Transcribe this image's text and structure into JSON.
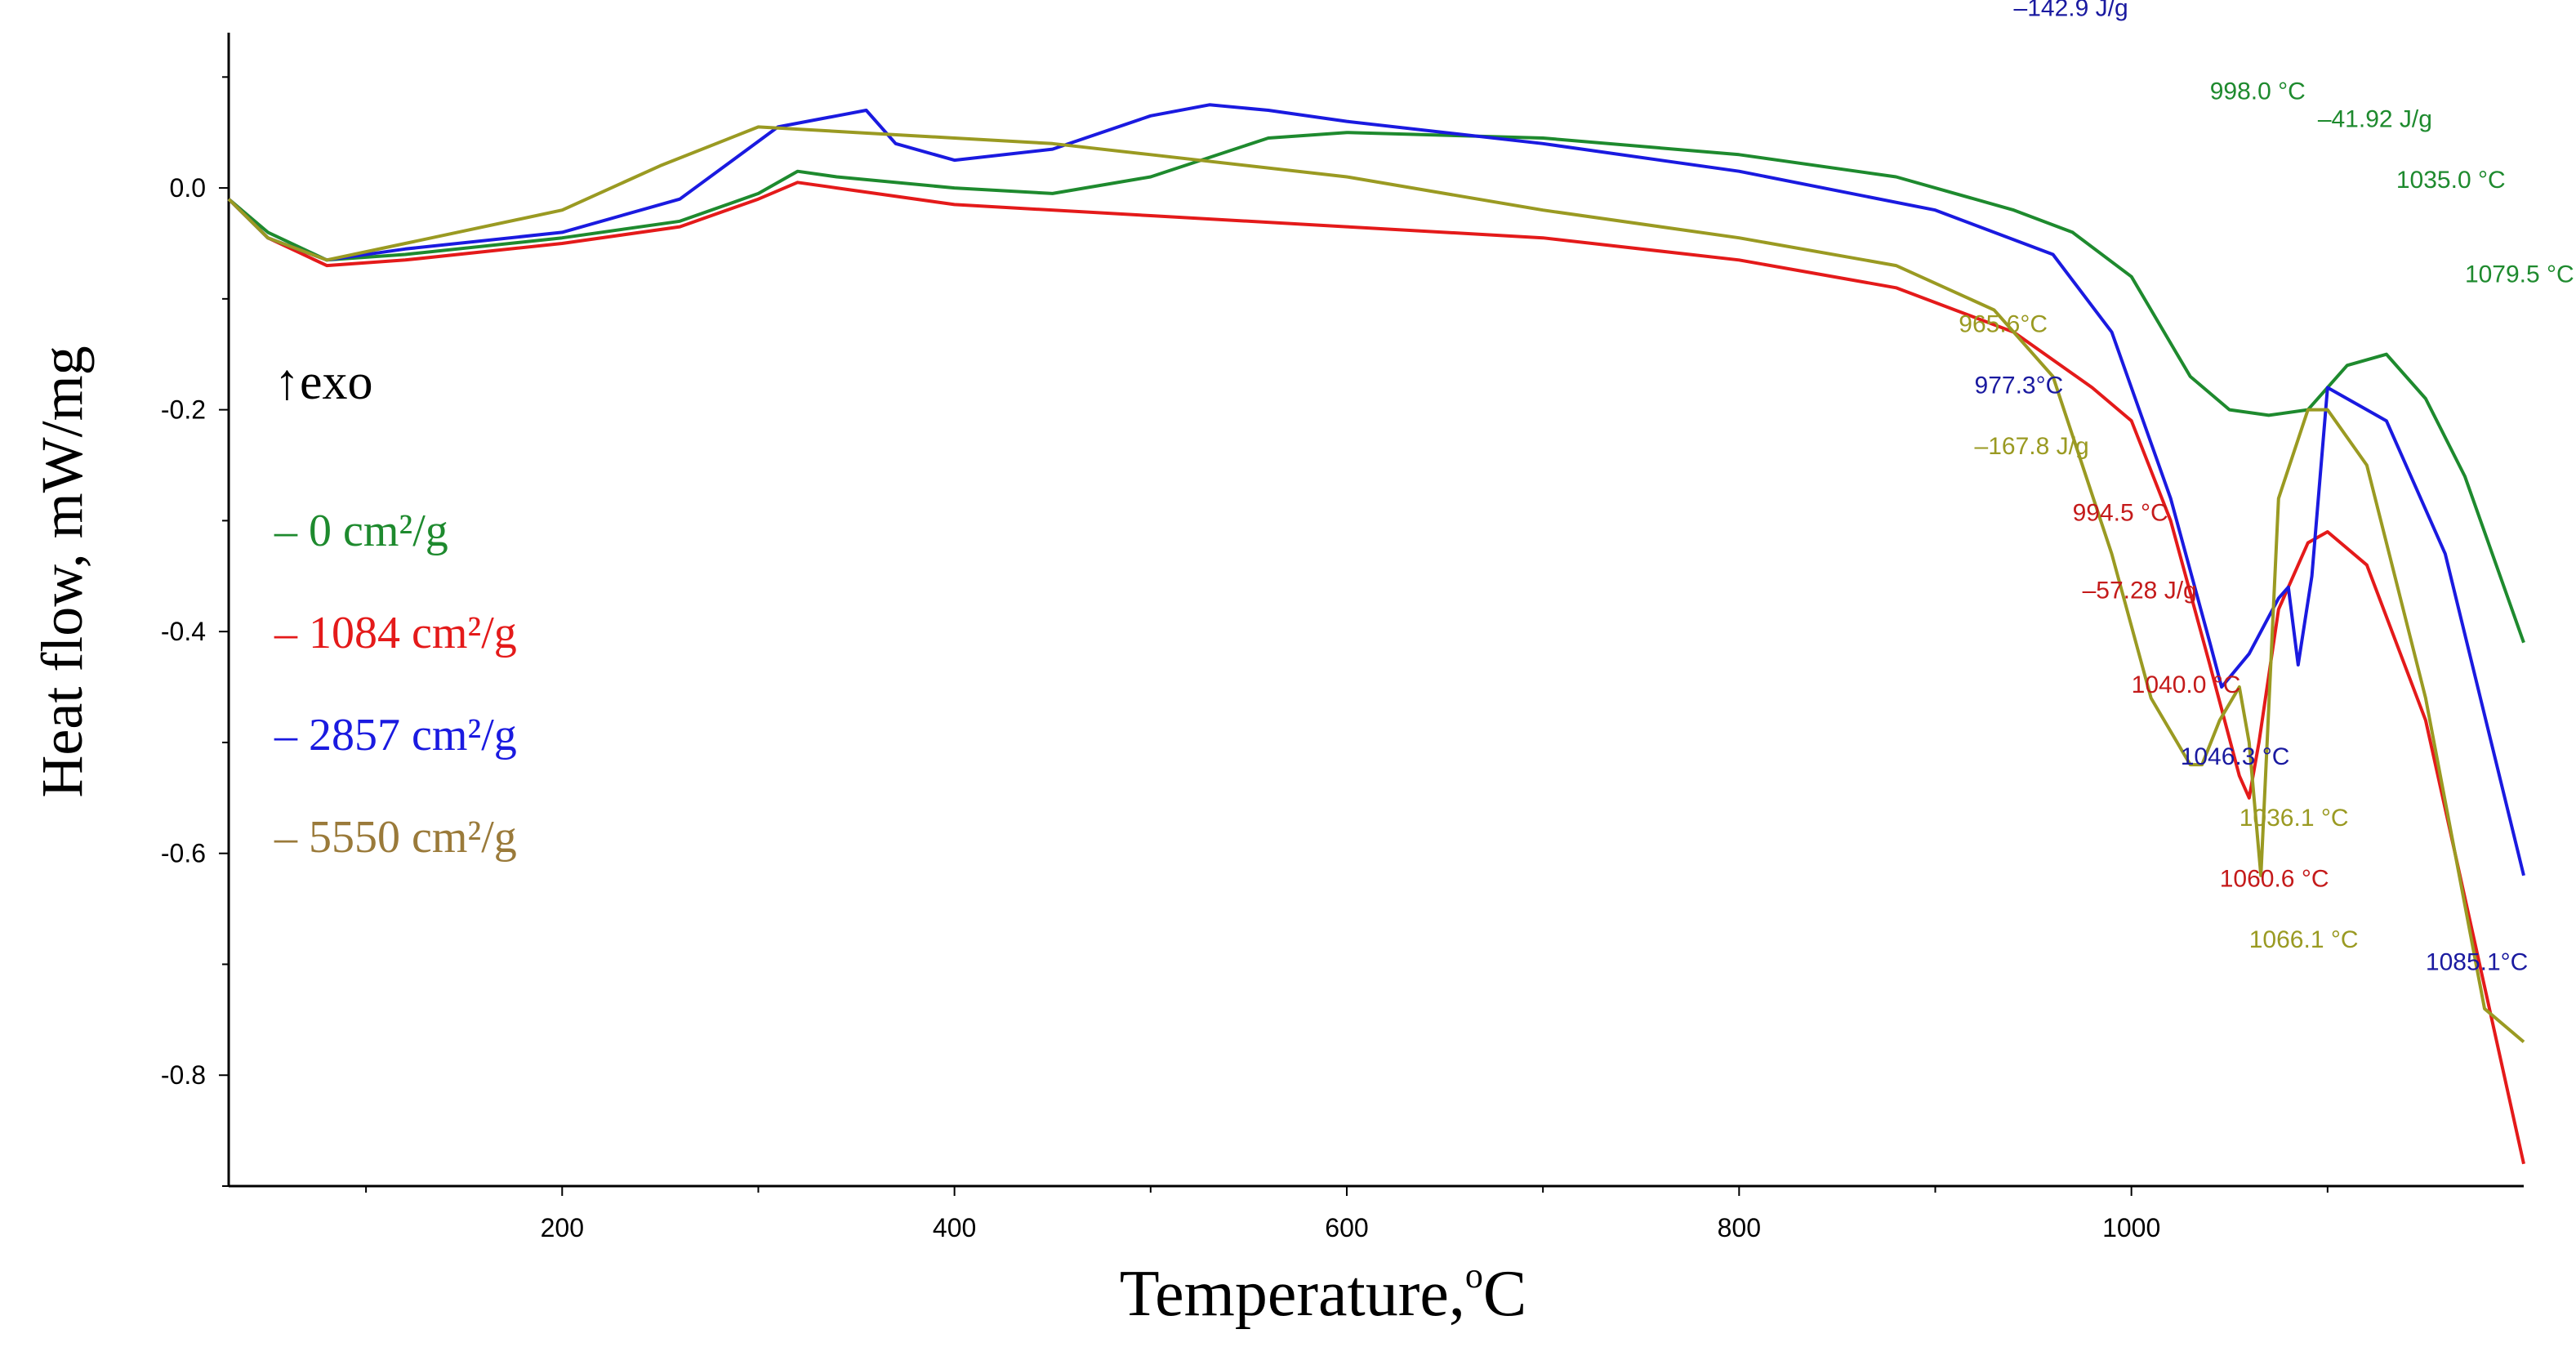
{
  "chart_data": {
    "type": "line",
    "xlabel": "Temperature,",
    "xlabel_unit": "o",
    "xlabel_suffix": "C",
    "ylabel": "Heat flow, mW/mg",
    "xlim": [
      30,
      1200
    ],
    "ylim": [
      -0.9,
      0.14
    ],
    "x_ticks": [
      200,
      400,
      600,
      800,
      1000
    ],
    "x_tick_labels": [
      "200",
      "400",
      "600",
      "800",
      "1000"
    ],
    "y_ticks": [
      0.0,
      -0.2,
      -0.4,
      -0.6,
      -0.8
    ],
    "y_tick_labels": [
      "0.0",
      "-0.2",
      "-0.4",
      "-0.6",
      "-0.8"
    ],
    "exo_label": "↑exo",
    "legend": [
      {
        "label": "– 0 cm²/g",
        "color": "#1e8a2e"
      },
      {
        "label": "– 1084 cm²/g",
        "color": "#e41a1a"
      },
      {
        "label": "– 2857 cm²/g",
        "color": "#1a1ae0"
      },
      {
        "label": "– 5550 cm²/g",
        "color": "#9a7a3a"
      }
    ],
    "series": [
      {
        "name": "0 cm²/g",
        "color": "#1e8a2e",
        "x": [
          30,
          50,
          80,
          120,
          200,
          260,
          300,
          320,
          340,
          400,
          450,
          500,
          560,
          600,
          700,
          800,
          880,
          940,
          970,
          1000,
          1010,
          1030,
          1050,
          1070,
          1090,
          1110,
          1130,
          1150,
          1170,
          1200
        ],
        "y": [
          -0.01,
          -0.04,
          -0.065,
          -0.06,
          -0.045,
          -0.03,
          -0.005,
          0.015,
          0.01,
          0.0,
          -0.005,
          0.01,
          0.045,
          0.05,
          0.045,
          0.03,
          0.01,
          -0.02,
          -0.04,
          -0.08,
          -0.11,
          -0.17,
          -0.2,
          -0.205,
          -0.2,
          -0.16,
          -0.15,
          -0.19,
          -0.26,
          -0.41
        ]
      },
      {
        "name": "1084 cm²/g",
        "color": "#e41a1a",
        "x": [
          30,
          50,
          80,
          120,
          200,
          260,
          300,
          320,
          340,
          400,
          500,
          600,
          700,
          800,
          880,
          940,
          980,
          1000,
          1020,
          1040,
          1055,
          1060,
          1065,
          1075,
          1090,
          1100,
          1120,
          1150,
          1180,
          1200
        ],
        "y": [
          -0.01,
          -0.045,
          -0.07,
          -0.065,
          -0.05,
          -0.035,
          -0.01,
          0.005,
          0.0,
          -0.015,
          -0.025,
          -0.035,
          -0.045,
          -0.065,
          -0.09,
          -0.13,
          -0.18,
          -0.21,
          -0.3,
          -0.43,
          -0.53,
          -0.55,
          -0.5,
          -0.38,
          -0.32,
          -0.31,
          -0.34,
          -0.48,
          -0.72,
          -0.88
        ]
      },
      {
        "name": "2857 cm²/g",
        "color": "#1a1ae0",
        "x": [
          30,
          50,
          80,
          120,
          200,
          260,
          310,
          340,
          355,
          370,
          400,
          450,
          500,
          530,
          560,
          600,
          700,
          800,
          900,
          960,
          990,
          1020,
          1040,
          1046,
          1060,
          1075,
          1080,
          1085,
          1092,
          1100,
          1130,
          1160,
          1200
        ],
        "y": [
          -0.01,
          -0.045,
          -0.065,
          -0.055,
          -0.04,
          -0.01,
          0.055,
          0.065,
          0.07,
          0.04,
          0.025,
          0.035,
          0.065,
          0.075,
          0.07,
          0.06,
          0.04,
          0.015,
          -0.02,
          -0.06,
          -0.13,
          -0.28,
          -0.41,
          -0.45,
          -0.42,
          -0.37,
          -0.36,
          -0.43,
          -0.35,
          -0.18,
          -0.21,
          -0.33,
          -0.62
        ]
      },
      {
        "name": "5550 cm²/g",
        "color": "#9a9a22",
        "x": [
          30,
          50,
          80,
          120,
          200,
          250,
          300,
          350,
          400,
          450,
          500,
          600,
          700,
          800,
          880,
          930,
          960,
          990,
          1010,
          1030,
          1036,
          1045,
          1055,
          1060,
          1066,
          1075,
          1090,
          1100,
          1120,
          1150,
          1180,
          1200
        ],
        "y": [
          -0.01,
          -0.045,
          -0.065,
          -0.05,
          -0.02,
          0.02,
          0.055,
          0.05,
          0.045,
          0.04,
          0.03,
          0.01,
          -0.02,
          -0.045,
          -0.07,
          -0.11,
          -0.17,
          -0.33,
          -0.46,
          -0.52,
          -0.52,
          -0.48,
          -0.45,
          -0.5,
          -0.62,
          -0.28,
          -0.2,
          -0.2,
          -0.25,
          -0.46,
          -0.74,
          -0.77
        ]
      }
    ],
    "annotations": [
      {
        "text": "–142.9 J/g",
        "color": "#1a1aa0",
        "x": 940,
        "y": 0.155
      },
      {
        "text": "998.0 °C",
        "color": "#1e8a2e",
        "x": 1040,
        "y": 0.08
      },
      {
        "text": "–41.92 J/g",
        "color": "#1e8a2e",
        "x": 1095,
        "y": 0.055
      },
      {
        "text": "1035.0 °C",
        "color": "#1e8a2e",
        "x": 1135,
        "y": 0.0
      },
      {
        "text": "1079.5 °C",
        "color": "#1e8a2e",
        "x": 1170,
        "y": -0.085
      },
      {
        "text": "965.6°C",
        "color": "#9a9a22",
        "x": 912,
        "y": -0.13
      },
      {
        "text": "977.3°C",
        "color": "#1a1aa0",
        "x": 920,
        "y": -0.185
      },
      {
        "text": "–167.8 J/g",
        "color": "#9a9a22",
        "x": 920,
        "y": -0.24
      },
      {
        "text": "994.5 °C",
        "color": "#c41a1a",
        "x": 970,
        "y": -0.3
      },
      {
        "text": "–57.28 J/g",
        "color": "#c41a1a",
        "x": 975,
        "y": -0.37
      },
      {
        "text": "1040.0 °C",
        "color": "#c41a1a",
        "x": 1000,
        "y": -0.455
      },
      {
        "text": "1046.3 °C",
        "color": "#1a1aa0",
        "x": 1025,
        "y": -0.52
      },
      {
        "text": "1036.1 °C",
        "color": "#9a9a22",
        "x": 1055,
        "y": -0.575
      },
      {
        "text": "1060.6 °C",
        "color": "#c41a1a",
        "x": 1045,
        "y": -0.63
      },
      {
        "text": "1066.1 °C",
        "color": "#9a9a22",
        "x": 1060,
        "y": -0.685
      },
      {
        "text": "1085.1°C",
        "color": "#1a1aa0",
        "x": 1150,
        "y": -0.705
      }
    ]
  }
}
